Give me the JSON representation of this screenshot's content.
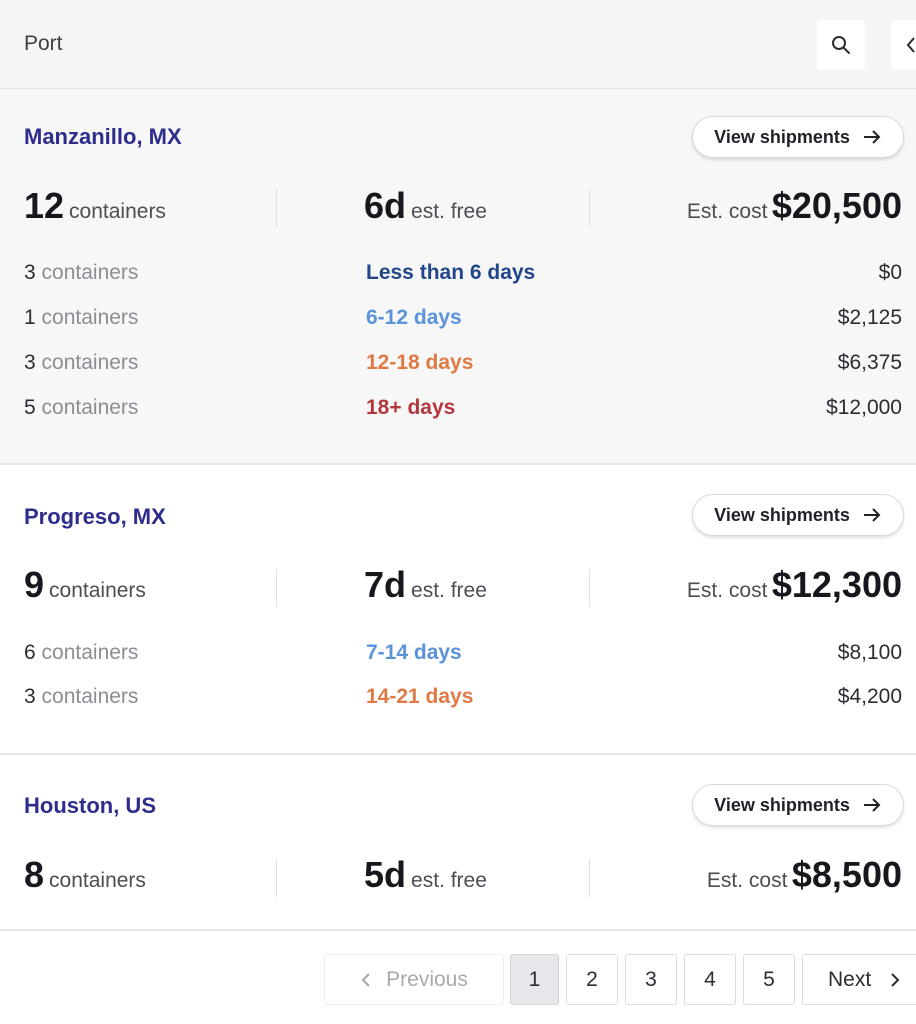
{
  "header": {
    "title": "Port"
  },
  "view_label": "View shipments",
  "ports": [
    {
      "name": "Manzanillo, MX",
      "total_containers": "12",
      "containers_unit": "containers",
      "free_days": "6d",
      "free_label": "est. free",
      "cost_label": "Est. cost",
      "cost": "$20,500",
      "rows": [
        {
          "count": "3",
          "unit": "containers",
          "days": "Less than 6 days",
          "days_color": "#22468a",
          "amount": "$0"
        },
        {
          "count": "1",
          "unit": "containers",
          "days": "6-12 days",
          "days_color": "#5b93db",
          "amount": "$2,125"
        },
        {
          "count": "3",
          "unit": "containers",
          "days": "12-18 days",
          "days_color": "#e07a45",
          "amount": "$6,375"
        },
        {
          "count": "5",
          "unit": "containers",
          "days": "18+ days",
          "days_color": "#b3373b",
          "amount": "$12,000"
        }
      ]
    },
    {
      "name": "Progreso, MX",
      "total_containers": "9",
      "containers_unit": "containers",
      "free_days": "7d",
      "free_label": "est. free",
      "cost_label": "Est. cost",
      "cost": "$12,300",
      "rows": [
        {
          "count": "6",
          "unit": "containers",
          "days": "7-14 days",
          "days_color": "#5b93db",
          "amount": "$8,100"
        },
        {
          "count": "3",
          "unit": "containers",
          "days": "14-21 days",
          "days_color": "#e07a45",
          "amount": "$4,200"
        }
      ]
    },
    {
      "name": "Houston, US",
      "total_containers": "8",
      "containers_unit": "containers",
      "free_days": "5d",
      "free_label": "est. free",
      "cost_label": "Est. cost",
      "cost": "$8,500",
      "rows": []
    }
  ],
  "pagination": {
    "previous": "Previous",
    "pages": [
      "1",
      "2",
      "3",
      "4",
      "5"
    ],
    "current": "1",
    "next": "Next"
  },
  "icons": {
    "search": "search-icon",
    "arrow": "arrow-right-icon",
    "chevron_left": "chevron-left-icon",
    "chevron_right": "chevron-right-icon"
  }
}
